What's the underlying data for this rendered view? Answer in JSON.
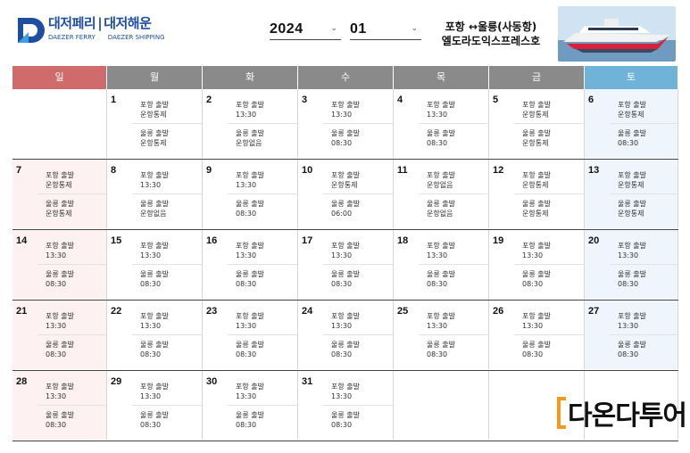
{
  "brand": {
    "name_ko_1": "대저페리",
    "name_ko_2": "대저해운",
    "name_en_1": "DAEZER FERRY",
    "name_en_2": "DAEZER SHIPPING",
    "logo_color": "#1d4ea1"
  },
  "selectors": {
    "year": "2024",
    "month": "01"
  },
  "route": {
    "line1": "포항 ↔울릉(사동항)",
    "line2": "엘도라도익스프레스호"
  },
  "weekdays": [
    "일",
    "월",
    "화",
    "수",
    "목",
    "금",
    "토"
  ],
  "colors": {
    "sunday_header": "#cf6b6b",
    "weekday_header": "#8a8a8a",
    "saturday_header": "#6fb3d8",
    "sunday_bg": "#fdf1f1",
    "saturday_bg": "#eef5fc",
    "watermark_accent": "#f29a1f"
  },
  "labels": {
    "depart_pohang": "포항 출발",
    "depart_ulleung": "울릉 출발"
  },
  "weeks": [
    [
      null,
      {
        "day": "1",
        "a": "운항통제",
        "b": "운항통제"
      },
      {
        "day": "2",
        "a": "13:30",
        "b": "운항없음"
      },
      {
        "day": "3",
        "a": "13:30",
        "b": "08:30"
      },
      {
        "day": "4",
        "a": "13:30",
        "b": "08:30"
      },
      {
        "day": "5",
        "a": "운항통제",
        "b": "운항통제"
      },
      {
        "day": "6",
        "a": "운항통제",
        "b": "08:30"
      }
    ],
    [
      {
        "day": "7",
        "a": "운항통제",
        "b": "운항통제"
      },
      {
        "day": "8",
        "a": "13:30",
        "b": "운항없음"
      },
      {
        "day": "9",
        "a": "13:30",
        "b": "08:30"
      },
      {
        "day": "10",
        "a": "운항통제",
        "b": "06:00"
      },
      {
        "day": "11",
        "a": "운항없음",
        "b": "운항없음"
      },
      {
        "day": "12",
        "a": "운항통제",
        "b": "운항통제"
      },
      {
        "day": "13",
        "a": "운항통제",
        "b": "운항통제"
      }
    ],
    [
      {
        "day": "14",
        "a": "13:30",
        "b": "08:30"
      },
      {
        "day": "15",
        "a": "13:30",
        "b": "08:30"
      },
      {
        "day": "16",
        "a": "13:30",
        "b": "08:30"
      },
      {
        "day": "17",
        "a": "13:30",
        "b": "08:30"
      },
      {
        "day": "18",
        "a": "13:30",
        "b": "08:30"
      },
      {
        "day": "19",
        "a": "13:30",
        "b": "08:30"
      },
      {
        "day": "20",
        "a": "13:30",
        "b": "08:30"
      }
    ],
    [
      {
        "day": "21",
        "a": "13:30",
        "b": "08:30"
      },
      {
        "day": "22",
        "a": "13:30",
        "b": "08:30"
      },
      {
        "day": "23",
        "a": "13:30",
        "b": "08:30"
      },
      {
        "day": "24",
        "a": "13:30",
        "b": "08:30"
      },
      {
        "day": "25",
        "a": "13:30",
        "b": "08:30"
      },
      {
        "day": "26",
        "a": "13:30",
        "b": "08:30"
      },
      {
        "day": "27",
        "a": "13:30",
        "b": "08:30"
      }
    ],
    [
      {
        "day": "28",
        "a": "13:30",
        "b": "08:30"
      },
      {
        "day": "29",
        "a": "13:30",
        "b": "08:30"
      },
      {
        "day": "30",
        "a": "13:30",
        "b": "08:30"
      },
      {
        "day": "31",
        "a": "13:30",
        "b": "08:30"
      },
      null,
      null,
      null
    ]
  ],
  "watermark": {
    "text": "다온다투어"
  }
}
